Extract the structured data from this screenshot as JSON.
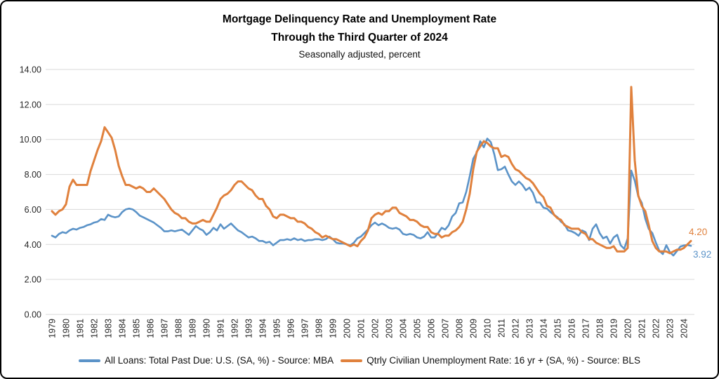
{
  "title": {
    "line1": "Mortgage Delinquency Rate and Unemployment Rate",
    "line2": "Through the Third Quarter of 2024",
    "subtitle": "Seasonally adjusted, percent"
  },
  "end_labels": {
    "unemployment": "4.20",
    "delinquency": "3.92"
  },
  "legend": [
    {
      "label": "All Loans: Total Past Due: U.S. (SA, %) - Source: MBA",
      "color": "#5B93C8"
    },
    {
      "label": "Qtrly Civilian Unemployment Rate: 16 yr + (SA, %) - Source: BLS",
      "color": "#E0813D"
    }
  ],
  "chart_data": {
    "type": "line",
    "title": "Mortgage Delinquency Rate and Unemployment Rate Through the Third Quarter of 2024",
    "subtitle": "Seasonally adjusted, percent",
    "frequency": "quarterly",
    "x_range": "1979 Q1 - 2024 Q3",
    "ylim": [
      0,
      14
    ],
    "grid": true,
    "legend_position": "bottom",
    "grid_color": "#D9D9D9",
    "y_ticks": [
      0,
      2,
      4,
      6,
      8,
      10,
      12,
      14
    ],
    "y_tick_labels": [
      "0.00",
      "2.00",
      "4.00",
      "6.00",
      "8.00",
      "10.00",
      "12.00",
      "14.00"
    ],
    "x_tick_labels": [
      "1979",
      "1980",
      "1981",
      "1982",
      "1983",
      "1984",
      "1985",
      "1986",
      "1987",
      "1988",
      "1989",
      "1990",
      "1991",
      "1992",
      "1993",
      "1994",
      "1995",
      "1996",
      "1997",
      "1998",
      "1999",
      "2000",
      "2001",
      "2002",
      "2003",
      "2004",
      "2005",
      "2006",
      "2007",
      "2008",
      "2009",
      "2010",
      "2011",
      "2012",
      "2013",
      "2014",
      "2015",
      "2016",
      "2017",
      "2018",
      "2019",
      "2020",
      "2021",
      "2022",
      "2023",
      "2024"
    ],
    "series": [
      {
        "name": "All Loans: Total Past Due: U.S. (SA, %) - Source: MBA",
        "color": "#5B93C8",
        "width": 2.6,
        "last_value_label": "3.92",
        "values": [
          4.5,
          4.4,
          4.6,
          4.7,
          4.65,
          4.8,
          4.9,
          4.85,
          4.95,
          5.0,
          5.1,
          5.15,
          5.25,
          5.3,
          5.45,
          5.4,
          5.7,
          5.6,
          5.55,
          5.6,
          5.85,
          6.0,
          6.05,
          6.0,
          5.85,
          5.65,
          5.55,
          5.45,
          5.35,
          5.25,
          5.1,
          4.95,
          4.75,
          4.75,
          4.8,
          4.75,
          4.8,
          4.85,
          4.7,
          4.55,
          4.8,
          5.05,
          4.9,
          4.8,
          4.55,
          4.7,
          4.95,
          4.8,
          5.15,
          4.9,
          5.05,
          5.2,
          5.0,
          4.8,
          4.7,
          4.55,
          4.4,
          4.45,
          4.35,
          4.2,
          4.2,
          4.1,
          4.15,
          3.95,
          4.1,
          4.25,
          4.25,
          4.3,
          4.25,
          4.35,
          4.25,
          4.3,
          4.2,
          4.25,
          4.25,
          4.3,
          4.3,
          4.25,
          4.3,
          4.45,
          4.3,
          4.1,
          4.05,
          4.05,
          4.0,
          3.95,
          4.1,
          4.35,
          4.45,
          4.65,
          4.85,
          5.1,
          5.25,
          5.1,
          5.2,
          5.1,
          4.95,
          4.9,
          4.95,
          4.85,
          4.6,
          4.55,
          4.6,
          4.55,
          4.4,
          4.35,
          4.45,
          4.7,
          4.4,
          4.4,
          4.65,
          4.95,
          4.85,
          5.1,
          5.6,
          5.8,
          6.35,
          6.4,
          7.0,
          7.9,
          8.9,
          9.25,
          9.9,
          9.55,
          10.05,
          9.85,
          9.15,
          8.25,
          8.3,
          8.45,
          8.0,
          7.6,
          7.4,
          7.6,
          7.4,
          7.1,
          7.25,
          6.95,
          6.4,
          6.4,
          6.1,
          6.05,
          5.85,
          5.7,
          5.55,
          5.3,
          5.15,
          4.8,
          4.75,
          4.65,
          4.5,
          4.8,
          4.7,
          4.25,
          4.9,
          5.15,
          4.65,
          4.35,
          4.45,
          4.05,
          4.4,
          4.55,
          3.95,
          3.75,
          4.35,
          8.22,
          7.65,
          6.75,
          6.38,
          5.47,
          4.88,
          4.65,
          4.11,
          3.64,
          3.45,
          3.96,
          3.56,
          3.37,
          3.62,
          3.88,
          3.94,
          3.97,
          3.92
        ]
      },
      {
        "name": "Qtrly Civilian Unemployment Rate: 16 yr + (SA, %) - Source: BLS",
        "color": "#E0813D",
        "width": 3,
        "last_value_label": "4.20",
        "values": [
          5.9,
          5.7,
          5.9,
          6.0,
          6.3,
          7.3,
          7.7,
          7.4,
          7.4,
          7.4,
          7.4,
          8.2,
          8.8,
          9.4,
          9.9,
          10.7,
          10.4,
          10.1,
          9.4,
          8.5,
          7.9,
          7.4,
          7.4,
          7.3,
          7.2,
          7.3,
          7.2,
          7.0,
          7.0,
          7.2,
          7.0,
          6.8,
          6.6,
          6.3,
          6.0,
          5.8,
          5.7,
          5.5,
          5.5,
          5.3,
          5.2,
          5.2,
          5.3,
          5.4,
          5.3,
          5.3,
          5.7,
          6.1,
          6.6,
          6.8,
          6.9,
          7.1,
          7.4,
          7.6,
          7.6,
          7.4,
          7.2,
          7.1,
          6.8,
          6.6,
          6.6,
          6.2,
          6.0,
          5.6,
          5.5,
          5.7,
          5.7,
          5.6,
          5.5,
          5.5,
          5.3,
          5.3,
          5.2,
          5.0,
          4.9,
          4.7,
          4.6,
          4.4,
          4.5,
          4.4,
          4.3,
          4.3,
          4.2,
          4.1,
          4.0,
          3.9,
          4.0,
          3.9,
          4.2,
          4.4,
          4.8,
          5.5,
          5.7,
          5.8,
          5.7,
          5.9,
          5.9,
          6.1,
          6.1,
          5.8,
          5.7,
          5.6,
          5.4,
          5.4,
          5.3,
          5.1,
          5.0,
          5.0,
          4.7,
          4.6,
          4.6,
          4.4,
          4.5,
          4.5,
          4.7,
          4.8,
          5.0,
          5.3,
          6.0,
          6.9,
          8.3,
          9.3,
          9.6,
          9.9,
          9.8,
          9.6,
          9.5,
          9.5,
          9.0,
          9.1,
          9.0,
          8.6,
          8.3,
          8.2,
          8.0,
          7.8,
          7.7,
          7.5,
          7.2,
          6.9,
          6.7,
          6.2,
          6.1,
          5.7,
          5.5,
          5.4,
          5.1,
          5.0,
          4.9,
          4.9,
          4.9,
          4.7,
          4.6,
          4.3,
          4.3,
          4.1,
          4.0,
          3.9,
          3.8,
          3.8,
          3.9,
          3.6,
          3.6,
          3.6,
          3.8,
          13.0,
          8.8,
          6.8,
          6.2,
          5.9,
          5.1,
          4.2,
          3.8,
          3.6,
          3.6,
          3.6,
          3.5,
          3.6,
          3.7,
          3.7,
          3.8,
          4.0,
          4.2
        ]
      }
    ]
  }
}
